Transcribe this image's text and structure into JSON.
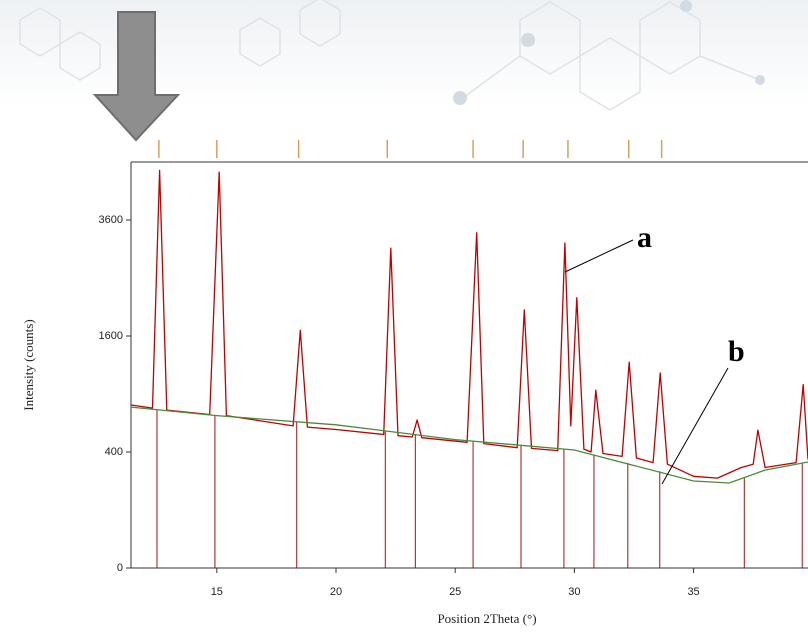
{
  "chart_data": {
    "type": "line",
    "scale_y": "sqrt",
    "x_label": "Position 2Theta (°)",
    "y_label": "Intensity (counts)",
    "x": [
      11.4,
      12.3,
      12.6,
      12.9,
      14.7,
      15.1,
      15.4,
      18.2,
      18.5,
      18.8,
      20,
      22.0,
      22.3,
      22.6,
      23.2,
      23.4,
      23.6,
      25.5,
      25.9,
      26.2,
      27.6,
      27.9,
      28.2,
      29.3,
      29.6,
      29.85,
      30.1,
      30.4,
      30.7,
      30.9,
      31.2,
      32.0,
      32.3,
      32.6,
      33.3,
      33.6,
      33.9,
      35,
      36,
      37.0,
      37.5,
      37.7,
      38.0,
      39.3,
      39.6,
      39.8
    ],
    "series": [
      {
        "color": "#c00000",
        "values": [
          790,
          760,
          4700,
          740,
          700,
          4660,
          690,
          600,
          1680,
          590,
          570,
          530,
          3040,
          520,
          510,
          650,
          505,
          470,
          3340,
          460,
          430,
          1980,
          425,
          410,
          3140,
          600,
          2170,
          420,
          400,
          940,
          390,
          370,
          1260,
          360,
          330,
          1130,
          320,
          250,
          240,
          300,
          320,
          565,
          300,
          330,
          1000,
          350
        ]
      }
    ],
    "background": {
      "color": "#4a8a3a",
      "x": [
        11.4,
        15,
        20,
        25,
        30,
        35,
        36.5,
        38,
        39.8
      ],
      "values": [
        770,
        690,
        610,
        490,
        414,
        225,
        215,
        285,
        334
      ]
    },
    "peak_positions": [
      12.49,
      14.92,
      18.35,
      22.07,
      23.33,
      25.75,
      27.76,
      29.56,
      30.82,
      32.24,
      33.58,
      37.13,
      39.56
    ],
    "peak_color": "#b03a3a",
    "reference_positions": [
      12.57,
      15.0,
      18.43,
      22.15,
      25.75,
      27.85,
      29.73,
      32.28,
      33.66
    ],
    "reference_color": "#d4a060",
    "xlim": [
      11.4,
      39.8
    ],
    "ylim": [
      0,
      4900
    ],
    "xticks": [
      15,
      20,
      25,
      30,
      35
    ],
    "yticks": [
      0,
      400,
      1600,
      3600
    ],
    "annotations": [
      "a",
      "b"
    ]
  }
}
